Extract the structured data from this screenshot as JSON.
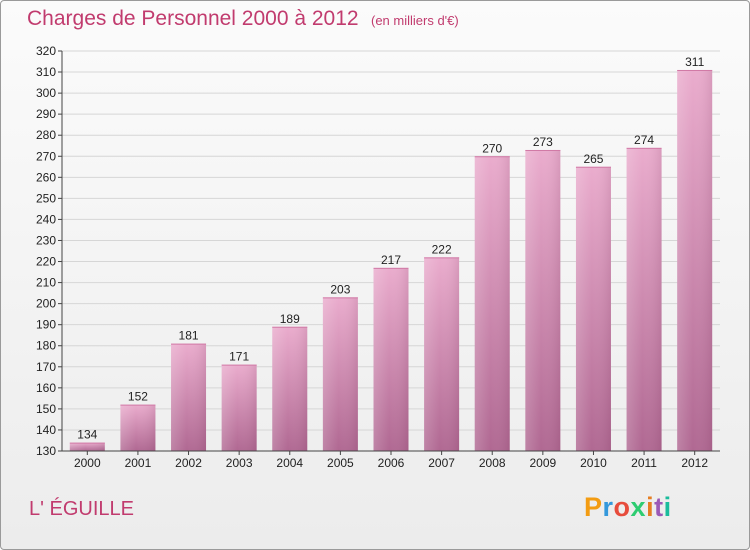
{
  "header": {
    "title": "Charges de Personnel 2000 à 2012",
    "subtitle": "(en milliers d'€)"
  },
  "footer": {
    "commune": "L' ÉGUILLE",
    "logo": "Proxiti",
    "logo_colors": [
      "#f39c12",
      "#3498db",
      "#e74c3c",
      "#2ecc71",
      "#e67e22",
      "#9b59b6",
      "#1abc9c"
    ]
  },
  "colors": {
    "accent": "#c13b6e",
    "bar_light": "#eaaccd",
    "bar_dark": "#b06892",
    "grid": "#d6d6d6"
  },
  "chart_data": {
    "type": "bar",
    "title": "Charges de Personnel 2000 à 2012",
    "subtitle": "(en milliers d'€)",
    "categories": [
      "2000",
      "2001",
      "2002",
      "2003",
      "2004",
      "2005",
      "2006",
      "2007",
      "2008",
      "2009",
      "2010",
      "2011",
      "2012"
    ],
    "values": [
      134,
      152,
      181,
      171,
      189,
      203,
      217,
      222,
      270,
      273,
      265,
      274,
      311
    ],
    "ylim": [
      130,
      320
    ],
    "ytick_step": 10,
    "grid": true,
    "legend": "none",
    "xlabel": "",
    "ylabel": ""
  }
}
